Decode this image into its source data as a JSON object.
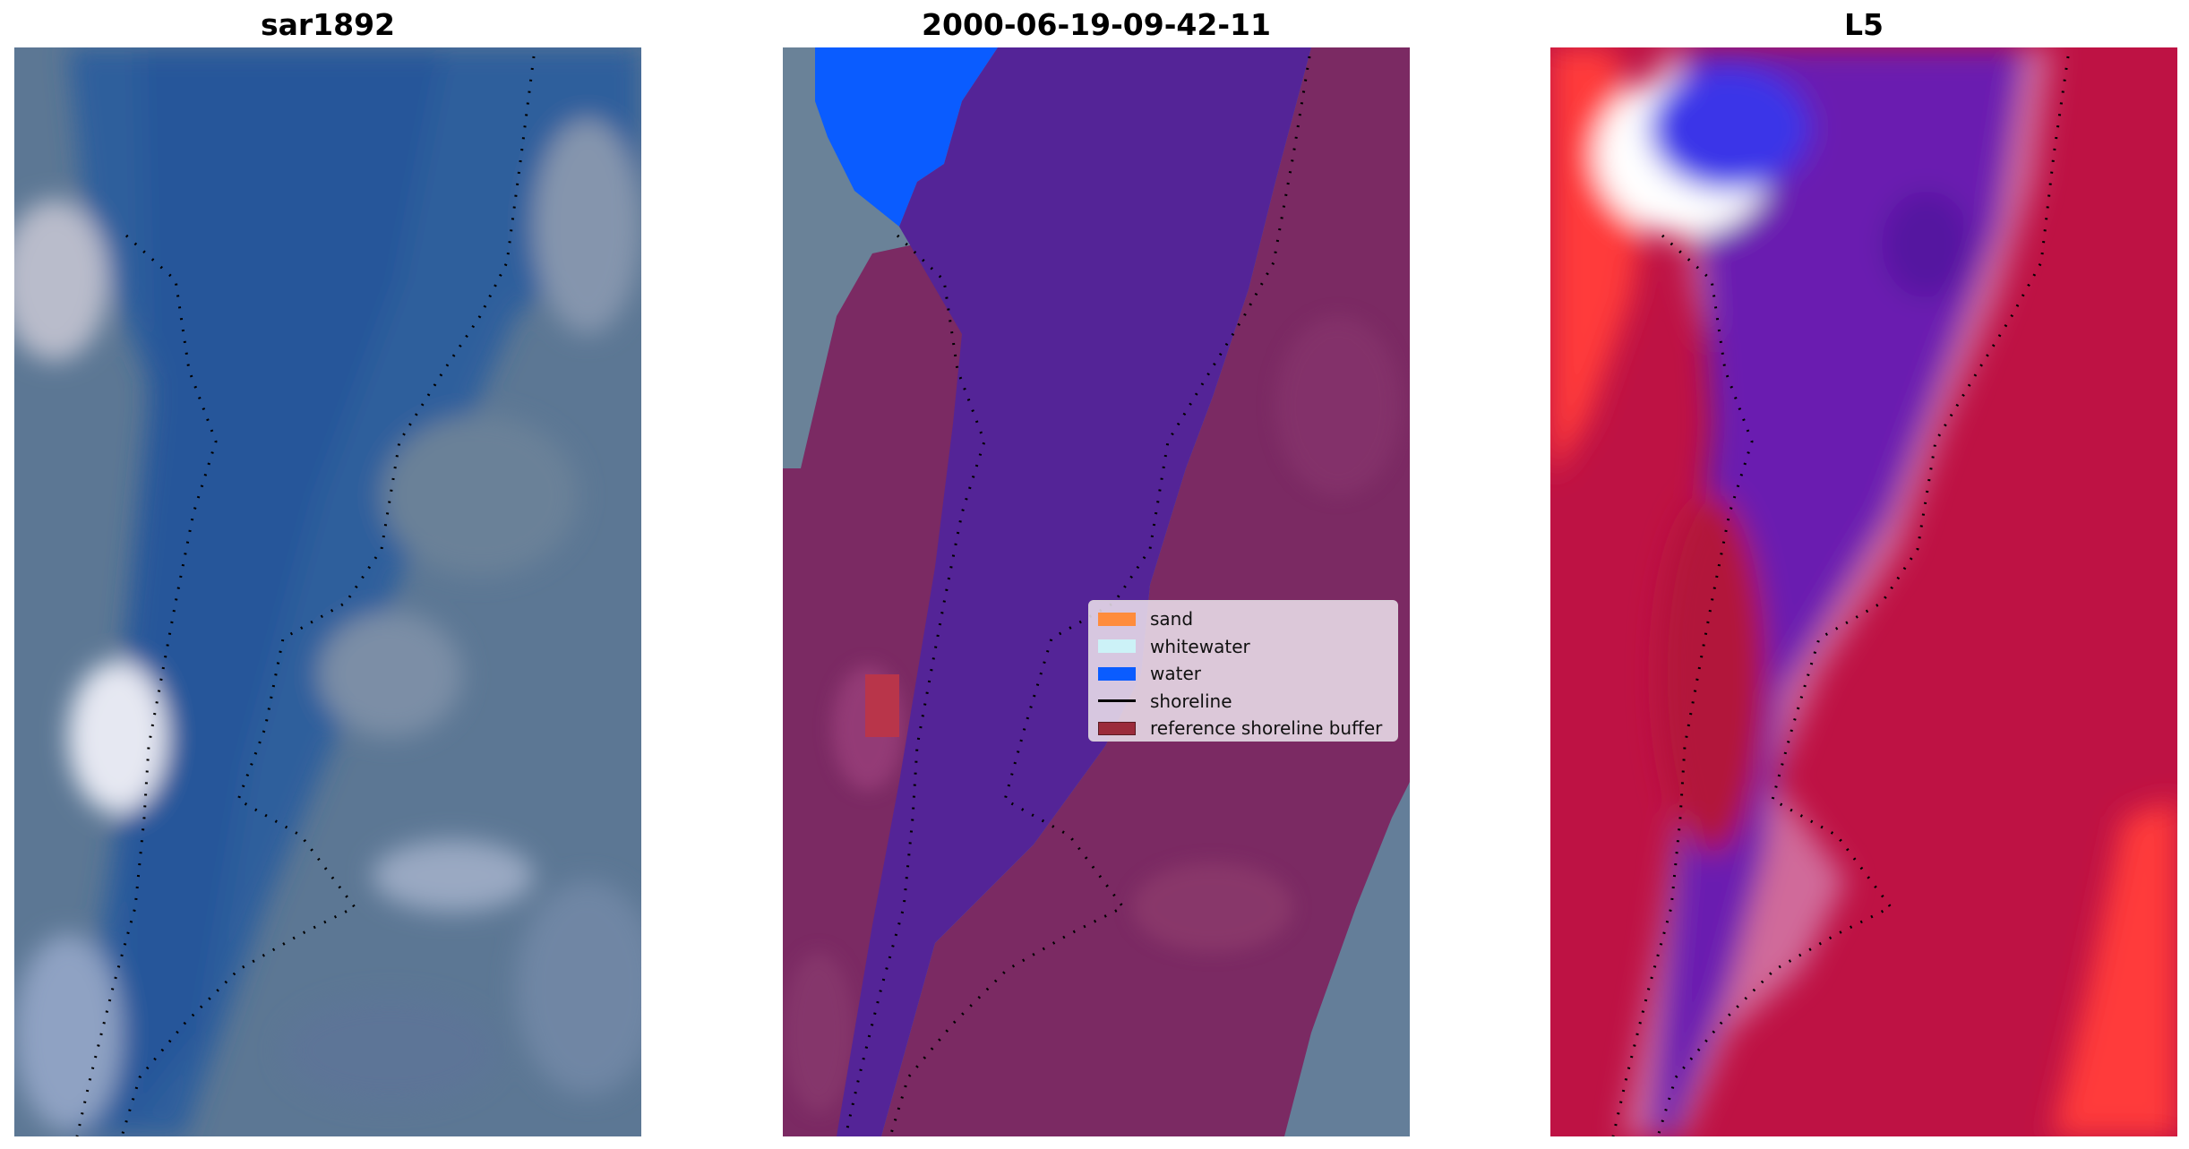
{
  "panels": [
    {
      "title": "sar1892"
    },
    {
      "title": "2000-06-19-09-42-11"
    },
    {
      "title": "L5"
    }
  ],
  "legend": {
    "items": [
      {
        "label": "sand",
        "color": "#ff8c3c",
        "type": "patch"
      },
      {
        "label": "whitewater",
        "color": "#ccf2f7",
        "type": "patch"
      },
      {
        "label": "water",
        "color": "#0a5cff",
        "type": "patch"
      },
      {
        "label": "shoreline",
        "color": "#000000",
        "type": "line"
      },
      {
        "label": "reference shoreline buffer",
        "color": "#9b2b3b",
        "type": "patch"
      }
    ]
  },
  "colors": {
    "rgb_water": "#2e5f9c",
    "rgb_land": "#5c7794",
    "class_water": "#542497",
    "class_land": "#7b2a63",
    "index_water": "#6a1cb0",
    "index_land": "#be1244",
    "index_bright": "#ff3a3a"
  }
}
